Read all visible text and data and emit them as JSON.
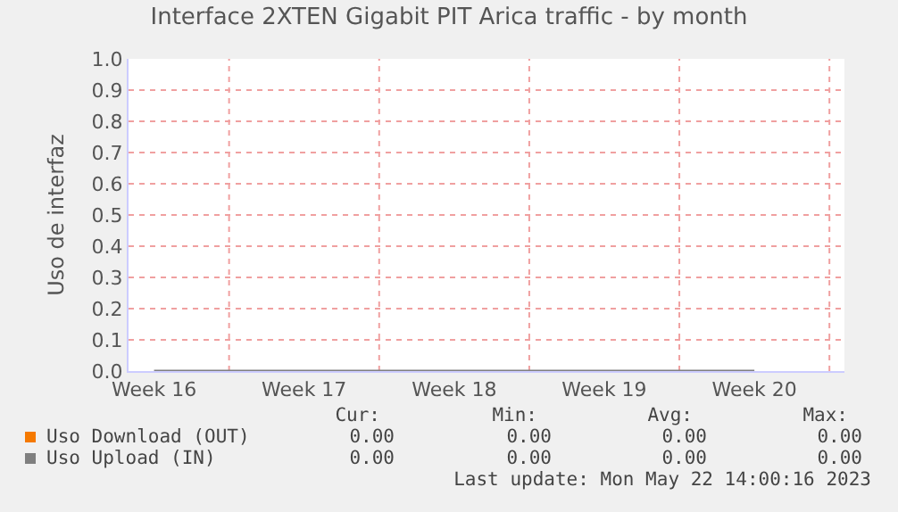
{
  "chart_data": {
    "type": "line",
    "title": "Interface 2XTEN Gigabit PIT Arica traffic - by month",
    "ylabel": "Uso de interfaz",
    "categories": [
      "Week 16",
      "Week 17",
      "Week 18",
      "Week 19",
      "Week 20"
    ],
    "series": [
      {
        "name": "Uso Download (OUT)",
        "color": "#f57900",
        "values": [
          null,
          null,
          null,
          null,
          null
        ]
      },
      {
        "name": "Uso Upload (IN)",
        "color": "#7f7f7f",
        "values": [
          0,
          0,
          0,
          0,
          0
        ]
      }
    ],
    "ylim": [
      0,
      1
    ],
    "yticks": [
      {
        "value": 0,
        "label": "0.0"
      },
      {
        "value": 0.1,
        "label": "0.1"
      },
      {
        "value": 0.2,
        "label": "0.2"
      },
      {
        "value": 0.3,
        "label": "0.3"
      },
      {
        "value": 0.4,
        "label": "0.4"
      },
      {
        "value": 0.5,
        "label": "0.5"
      },
      {
        "value": 0.6,
        "label": "0.6"
      },
      {
        "value": 0.7,
        "label": "0.7"
      },
      {
        "value": 0.8,
        "label": "0.8"
      },
      {
        "value": 0.9,
        "label": "0.9"
      },
      {
        "value": 1,
        "label": "1.0"
      }
    ],
    "grid": true,
    "legend": "bottom",
    "marker": "none",
    "line_style": "solid",
    "annotations": [
      "Cur:",
      "Min:",
      "Avg:",
      "Max:",
      "0.00",
      "0.00",
      "0.00",
      "0.00",
      "0.00",
      "0.00",
      "0.00",
      "0.00",
      "Last update: Mon May 22 14:00:16 2023"
    ]
  }
}
